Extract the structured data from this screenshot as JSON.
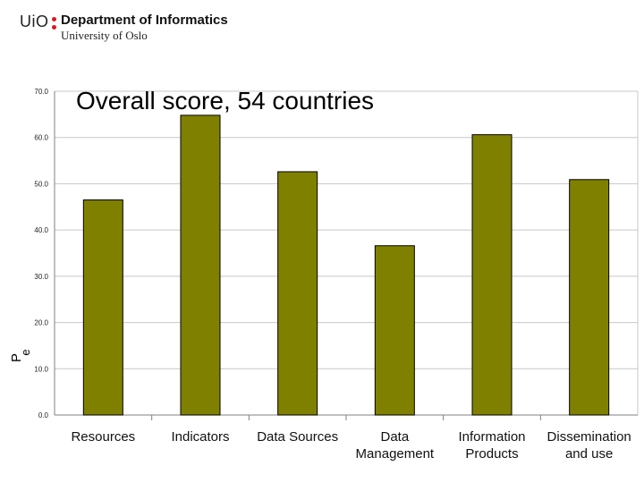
{
  "header": {
    "logo_text": "UiO",
    "department": "Department of Informatics",
    "university": "University of Oslo",
    "accent_color": "#d71920"
  },
  "chart_data": {
    "type": "bar",
    "title": "Overall score, 54 countries",
    "ylabel_fragments": [
      "P",
      "e"
    ],
    "categories": [
      [
        "Resources"
      ],
      [
        "Indicators"
      ],
      [
        "Data Sources"
      ],
      [
        "Data",
        "Management"
      ],
      [
        "Information",
        "Products"
      ],
      [
        "Dissemination",
        "and use"
      ]
    ],
    "values": [
      46.5,
      64.8,
      52.6,
      36.6,
      60.6,
      50.9
    ],
    "yticks": [
      "0.0",
      "10.0",
      "20.0",
      "30.0",
      "40.0",
      "50.0",
      "60.0",
      "70.0"
    ],
    "ylim": [
      0,
      70
    ],
    "grid": true,
    "bar_color": "#808000"
  }
}
